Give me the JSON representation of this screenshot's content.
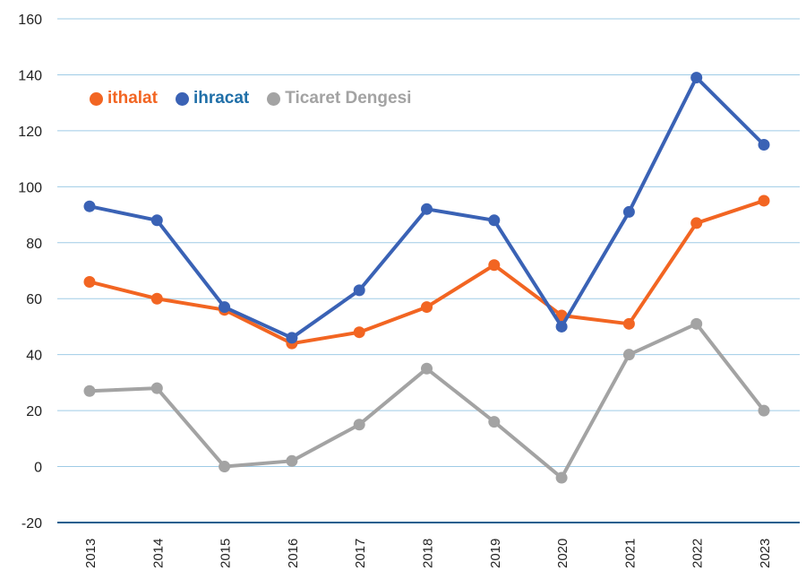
{
  "chart_data": {
    "type": "line",
    "categories": [
      "2013",
      "2014",
      "2015",
      "2016",
      "2017",
      "2018",
      "2019",
      "2020",
      "2021",
      "2022",
      "2023"
    ],
    "series": [
      {
        "name": "ithalat",
        "color": "#f26522",
        "values": [
          66,
          60,
          56,
          44,
          48,
          57,
          72,
          54,
          51,
          87,
          95
        ]
      },
      {
        "name": "ihracat",
        "color": "#3a62b5",
        "label_color": "#1f6fa8",
        "values": [
          93,
          88,
          57,
          46,
          63,
          92,
          88,
          50,
          91,
          139,
          115
        ]
      },
      {
        "name": "Ticaret Dengesi",
        "color": "#a3a3a3",
        "values": [
          27,
          28,
          0,
          2,
          15,
          35,
          16,
          -4,
          40,
          51,
          20
        ]
      }
    ],
    "ylim": [
      -20,
      160
    ],
    "yticks": [
      "160",
      "140",
      "120",
      "100",
      "80",
      "60",
      "40",
      "20",
      "0",
      "-20"
    ],
    "grid": true,
    "legend": "top-left",
    "gridline_color": "#9fcbe6",
    "axis_color": "#1a5f8e"
  }
}
